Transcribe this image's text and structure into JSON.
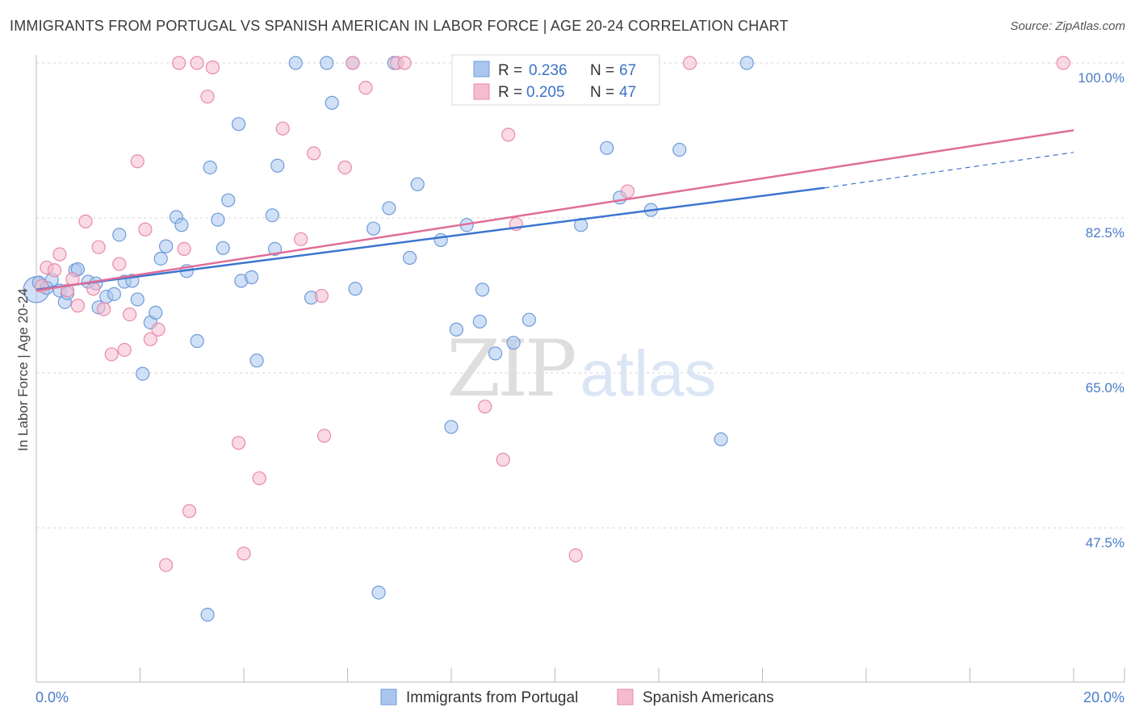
{
  "title": "IMMIGRANTS FROM PORTUGAL VS SPANISH AMERICAN IN LABOR FORCE | AGE 20-24 CORRELATION CHART",
  "source": "Source: ZipAtlas.com",
  "watermark": {
    "zip": "ZIP",
    "atlas": "atlas"
  },
  "colors": {
    "blue_fill": "#aac6ee",
    "blue_stroke": "#6f9bd8",
    "blue_line": "#3b75d0",
    "pink_fill": "#f5bccd",
    "pink_stroke": "#e88aa8",
    "pink_line": "#e06d98",
    "tick_text": "#4a7cc9",
    "grid": "#d5d5d5"
  },
  "legend": {
    "r_label": "R =",
    "n_label": "N =",
    "series": [
      {
        "r": "0.236",
        "n": "67"
      },
      {
        "r": "0.205",
        "n": "47"
      }
    ]
  },
  "chart_data": {
    "type": "scatter",
    "title": "IMMIGRANTS FROM PORTUGAL VS SPANISH AMERICAN IN LABOR FORCE | AGE 20-24 CORRELATION CHART",
    "xlabel": "",
    "ylabel": "In Labor Force | Age 20-24",
    "xlim": [
      0,
      20
    ],
    "ylim": [
      32,
      102
    ],
    "x_tick_labels": [
      "0.0%",
      "20.0%"
    ],
    "y_ticks": [
      47.5,
      65.0,
      82.5,
      100.0
    ],
    "y_tick_labels": [
      "47.5%",
      "65.0%",
      "82.5%",
      "100.0%"
    ],
    "grid": true,
    "legend_position": "top-center",
    "series": [
      {
        "name": "Immigrants from Portugal",
        "color": "#6f9bd8",
        "trend": {
          "x": [
            0,
            15.2
          ],
          "y": [
            74.4,
            85.9
          ],
          "dashed_to": [
            20,
            89.9
          ]
        },
        "points": [
          [
            0.05,
            75.2
          ],
          [
            0.3,
            75.5
          ],
          [
            0.45,
            74.3
          ],
          [
            0.55,
            73.0
          ],
          [
            0.75,
            76.6
          ],
          [
            0.8,
            76.7
          ],
          [
            1.0,
            75.3
          ],
          [
            1.2,
            72.4
          ],
          [
            1.35,
            73.6
          ],
          [
            1.5,
            73.9
          ],
          [
            1.6,
            80.6
          ],
          [
            1.7,
            75.3
          ],
          [
            1.85,
            75.4
          ],
          [
            1.95,
            73.3
          ],
          [
            2.05,
            64.9
          ],
          [
            2.2,
            70.7
          ],
          [
            2.3,
            71.8
          ],
          [
            2.4,
            77.9
          ],
          [
            2.5,
            79.3
          ],
          [
            2.7,
            82.6
          ],
          [
            2.8,
            81.7
          ],
          [
            2.9,
            76.5
          ],
          [
            3.1,
            68.6
          ],
          [
            3.35,
            88.2
          ],
          [
            3.5,
            82.3
          ],
          [
            3.6,
            79.1
          ],
          [
            3.7,
            84.5
          ],
          [
            3.9,
            93.1
          ],
          [
            3.95,
            75.4
          ],
          [
            4.15,
            75.8
          ],
          [
            4.25,
            66.4
          ],
          [
            4.55,
            82.8
          ],
          [
            4.6,
            79.0
          ],
          [
            4.65,
            88.4
          ],
          [
            5.0,
            100.0
          ],
          [
            5.3,
            73.5
          ],
          [
            5.6,
            100.0
          ],
          [
            5.7,
            95.5
          ],
          [
            6.1,
            100.0
          ],
          [
            6.15,
            74.5
          ],
          [
            6.5,
            81.3
          ],
          [
            6.6,
            40.2
          ],
          [
            6.8,
            83.6
          ],
          [
            6.9,
            100.0
          ],
          [
            7.2,
            78.0
          ],
          [
            7.35,
            86.3
          ],
          [
            7.8,
            80.0
          ],
          [
            8.0,
            58.9
          ],
          [
            8.1,
            69.9
          ],
          [
            8.3,
            81.7
          ],
          [
            8.55,
            70.8
          ],
          [
            8.6,
            74.4
          ],
          [
            8.85,
            67.2
          ],
          [
            9.2,
            68.4
          ],
          [
            9.5,
            71.0
          ],
          [
            10.0,
            100.0
          ],
          [
            10.5,
            81.7
          ],
          [
            11.0,
            90.4
          ],
          [
            11.25,
            84.8
          ],
          [
            11.85,
            83.4
          ],
          [
            12.4,
            90.2
          ],
          [
            13.2,
            57.5
          ],
          [
            13.7,
            100.0
          ],
          [
            3.3,
            37.7
          ],
          [
            0.2,
            74.6
          ],
          [
            1.15,
            75.1
          ],
          [
            0.6,
            74.0
          ]
        ]
      },
      {
        "name": "Spanish Americans",
        "color": "#e88aa8",
        "trend": {
          "x": [
            0,
            20
          ],
          "y": [
            74.3,
            92.4
          ]
        },
        "points": [
          [
            0.1,
            74.8
          ],
          [
            0.2,
            76.9
          ],
          [
            0.35,
            76.6
          ],
          [
            0.45,
            78.4
          ],
          [
            0.6,
            74.3
          ],
          [
            0.7,
            75.6
          ],
          [
            0.8,
            72.6
          ],
          [
            0.95,
            82.1
          ],
          [
            1.1,
            74.5
          ],
          [
            1.2,
            79.2
          ],
          [
            1.3,
            72.2
          ],
          [
            1.45,
            67.1
          ],
          [
            1.6,
            77.3
          ],
          [
            1.7,
            67.6
          ],
          [
            1.8,
            71.6
          ],
          [
            1.95,
            88.9
          ],
          [
            2.1,
            81.2
          ],
          [
            2.2,
            68.8
          ],
          [
            2.35,
            69.9
          ],
          [
            2.5,
            43.3
          ],
          [
            2.75,
            100.0
          ],
          [
            2.85,
            79.0
          ],
          [
            2.95,
            49.4
          ],
          [
            3.1,
            100.0
          ],
          [
            3.3,
            96.2
          ],
          [
            3.4,
            99.5
          ],
          [
            3.9,
            57.1
          ],
          [
            4.0,
            44.6
          ],
          [
            4.3,
            53.1
          ],
          [
            4.75,
            92.6
          ],
          [
            5.1,
            80.1
          ],
          [
            5.35,
            89.8
          ],
          [
            5.5,
            73.7
          ],
          [
            5.55,
            57.9
          ],
          [
            5.95,
            88.2
          ],
          [
            6.1,
            100.0
          ],
          [
            6.35,
            97.2
          ],
          [
            6.95,
            100.0
          ],
          [
            7.1,
            100.0
          ],
          [
            8.65,
            61.2
          ],
          [
            9.0,
            55.2
          ],
          [
            9.1,
            91.9
          ],
          [
            9.25,
            81.8
          ],
          [
            10.4,
            44.4
          ],
          [
            11.4,
            85.5
          ],
          [
            12.6,
            100.0
          ],
          [
            19.8,
            100.0
          ]
        ]
      }
    ]
  },
  "bottom_legend": [
    "Immigrants from Portugal",
    "Spanish Americans"
  ]
}
